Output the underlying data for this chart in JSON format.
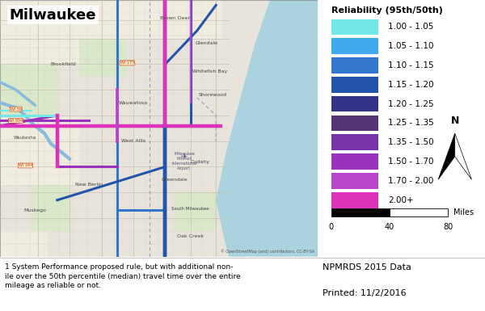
{
  "title": "Milwaukee",
  "legend_title": "Reliability (95th/50th)",
  "legend_labels": [
    "1.00 - 1.05",
    "1.05 - 1.10",
    "1.10 - 1.15",
    "1.15 - 1.20",
    "1.20 - 1.25",
    "1.25 - 1.35",
    "1.35 - 1.50",
    "1.50 - 1.70",
    "1.70 - 2.00",
    "2.00+"
  ],
  "legend_colors": [
    "#72E8E8",
    "#40AAEE",
    "#3377CC",
    "#2255AA",
    "#333388",
    "#553377",
    "#7733AA",
    "#9933BB",
    "#BB44CC",
    "#DD33BB"
  ],
  "scale_label": "Miles",
  "scale_ticks": [
    "0",
    "40",
    "80"
  ],
  "source_text": "NPMRDS 2015 Data",
  "printed_text": "Printed: 11/2/2016",
  "footnote_text": "1 System Performance proposed rule, but with additional non-\nile over the 50th percentile (median) travel time over the entire\nmileage as reliable or not.",
  "map_land_color": "#e8e4dc",
  "map_street_color": "#ffffff",
  "map_water_color": "#aad3df",
  "map_park_color": "#d8e8c8",
  "map_grid_color": "#d8d0c0",
  "figure_bg_color": "#ffffff",
  "lake_color": "#aad3df",
  "map_border_color": "#888888"
}
